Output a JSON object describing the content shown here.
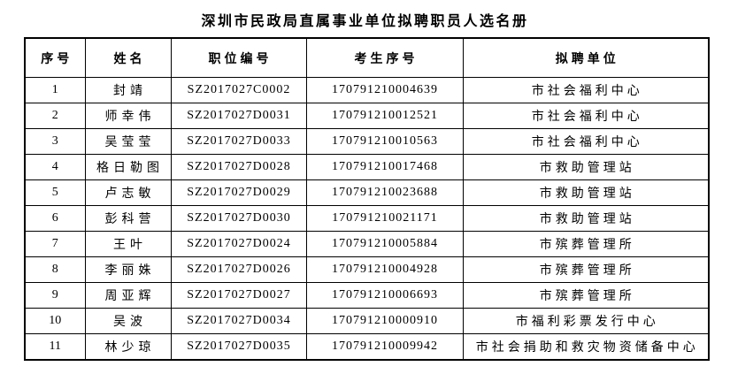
{
  "title": "深圳市民政局直属事业单位拟聘职员人选名册",
  "table": {
    "headers": [
      "序号",
      "姓名",
      "职位编号",
      "考生序号",
      "拟聘单位"
    ],
    "rows": [
      [
        "1",
        "封靖",
        "SZ2017027C0002",
        "170791210004639",
        "市社会福利中心"
      ],
      [
        "2",
        "师幸伟",
        "SZ2017027D0031",
        "170791210012521",
        "市社会福利中心"
      ],
      [
        "3",
        "吴莹莹",
        "SZ2017027D0033",
        "170791210010563",
        "市社会福利中心"
      ],
      [
        "4",
        "格日勒图",
        "SZ2017027D0028",
        "170791210017468",
        "市救助管理站"
      ],
      [
        "5",
        "卢志敏",
        "SZ2017027D0029",
        "170791210023688",
        "市救助管理站"
      ],
      [
        "6",
        "彭科营",
        "SZ2017027D0030",
        "170791210021171",
        "市救助管理站"
      ],
      [
        "7",
        "王叶",
        "SZ2017027D0024",
        "170791210005884",
        "市殡葬管理所"
      ],
      [
        "8",
        "李丽姝",
        "SZ2017027D0026",
        "170791210004928",
        "市殡葬管理所"
      ],
      [
        "9",
        "周亚辉",
        "SZ2017027D0027",
        "170791210006693",
        "市殡葬管理所"
      ],
      [
        "10",
        "吴波",
        "SZ2017027D0034",
        "170791210000910",
        "市福利彩票发行中心"
      ],
      [
        "11",
        "林少琼",
        "SZ2017027D0035",
        "170791210009942",
        "市社会捐助和救灾物资储备中心"
      ]
    ]
  }
}
